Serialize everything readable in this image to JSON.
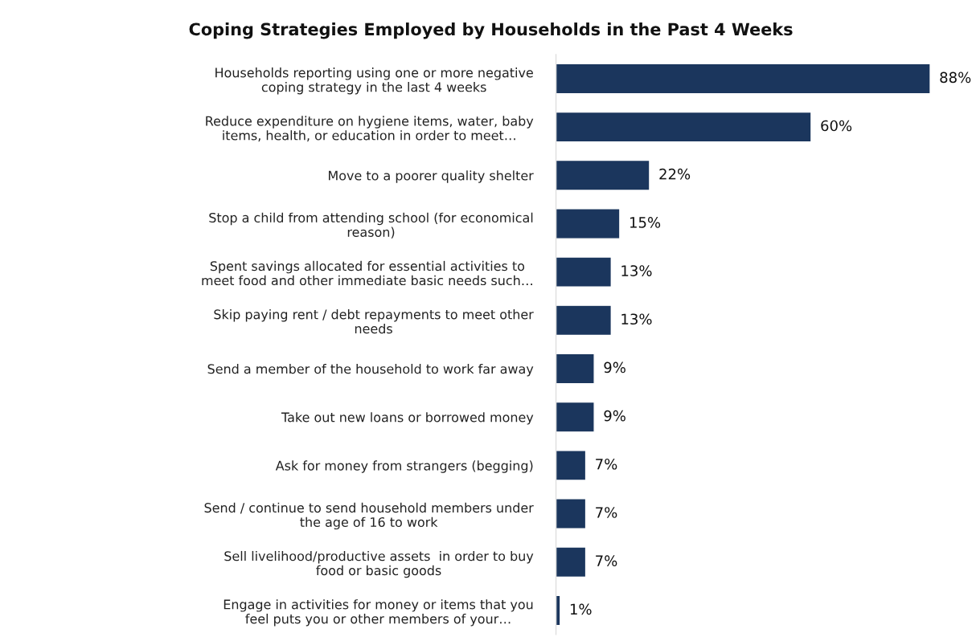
{
  "chart_data": {
    "type": "bar",
    "orientation": "horizontal",
    "title": "Coping Strategies Employed by Households in the Past 4 Weeks",
    "categories": [
      "Households reporting using one or more negative\ncoping strategy in the last 4 weeks",
      "Reduce expenditure on hygiene items, water, baby\nitems, health, or education in order to meet…",
      "Move to a poorer quality shelter",
      "Stop a child from attending school (for economical\nreason)",
      "Spent savings allocated for essential activities to\nmeet food and other immediate basic needs such…",
      "Skip paying rent / debt repayments to meet other\nneeds",
      "Send a member of the household to work far away",
      "Take out new loans or borrowed money",
      "Ask for money from strangers (begging)",
      "Send / continue to send household members under\nthe age of 16 to work",
      "Sell livelihood/productive assets  in order to buy\nfood or basic goods",
      "Engage in activities for money or items that you\nfeel puts you or other members of your…"
    ],
    "values": [
      88,
      60,
      22,
      15,
      13,
      13,
      9,
      9,
      7,
      7,
      7,
      1
    ],
    "value_labels": [
      "88%",
      "60%",
      "22%",
      "15%",
      "13%",
      "13%",
      "9%",
      "9%",
      "7%",
      "7%",
      "7%",
      "1%"
    ],
    "color": "#1b365d",
    "grid": false,
    "legend": false
  }
}
